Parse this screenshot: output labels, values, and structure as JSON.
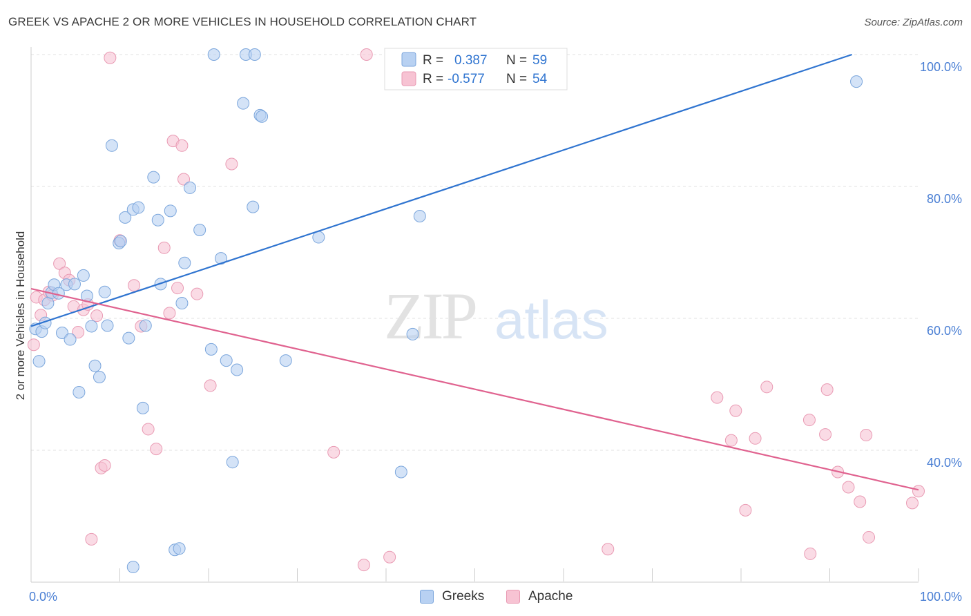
{
  "title": "GREEK VS APACHE 2 OR MORE VEHICLES IN HOUSEHOLD CORRELATION CHART",
  "source": "Source: ZipAtlas.com",
  "watermark": {
    "zip": "ZIP",
    "atlas": "atlas"
  },
  "colors": {
    "greek_fill": "#b8d1f2",
    "greek_stroke": "#7ba6dc",
    "greek_line": "#2f74d0",
    "apache_fill": "#f7c3d3",
    "apache_stroke": "#e99ab3",
    "apache_line": "#e0628f",
    "axis_text": "#4a7fd4",
    "grid": "#e2e2e2"
  },
  "stats": {
    "greek": {
      "r_label": "R =",
      "r_value": "0.387",
      "n_label": "N =",
      "n_value": "59"
    },
    "apache": {
      "r_label": "R =",
      "r_value": "-0.577",
      "n_label": "N =",
      "n_value": "54"
    }
  },
  "legend": {
    "greek": "Greeks",
    "apache": "Apache"
  },
  "chart_data": {
    "type": "scatter",
    "title": "GREEK VS APACHE 2 OR MORE VEHICLES IN HOUSEHOLD CORRELATION CHART",
    "xlabel": "",
    "ylabel": "2 or more Vehicles in Household",
    "xlim": [
      0,
      100
    ],
    "ylim": [
      20,
      100
    ],
    "x_tick_labels": [
      "0.0%",
      "100.0%"
    ],
    "y_ticks": [
      40,
      60,
      80,
      100
    ],
    "y_tick_labels": [
      "40.0%",
      "60.0%",
      "80.0%",
      "100.0%"
    ],
    "grid": true,
    "legend_position": "bottom-center",
    "series": [
      {
        "name": "Greeks",
        "points": [
          [
            0.5,
            58.4
          ],
          [
            0.9,
            53.5
          ],
          [
            1.2,
            58.0
          ],
          [
            1.6,
            59.3
          ],
          [
            1.9,
            62.3
          ],
          [
            2.3,
            63.9
          ],
          [
            2.6,
            65.1
          ],
          [
            3.1,
            63.8
          ],
          [
            3.5,
            57.8
          ],
          [
            4.0,
            65.1
          ],
          [
            4.4,
            56.8
          ],
          [
            4.9,
            65.2
          ],
          [
            5.4,
            48.8
          ],
          [
            5.9,
            66.5
          ],
          [
            6.3,
            63.4
          ],
          [
            6.8,
            58.8
          ],
          [
            7.2,
            52.8
          ],
          [
            7.7,
            51.1
          ],
          [
            8.3,
            64.0
          ],
          [
            8.6,
            58.9
          ],
          [
            9.1,
            86.2
          ],
          [
            9.9,
            71.4
          ],
          [
            10.1,
            71.7
          ],
          [
            10.6,
            75.3
          ],
          [
            11.0,
            57.0
          ],
          [
            11.5,
            76.5
          ],
          [
            12.1,
            76.8
          ],
          [
            12.9,
            58.9
          ],
          [
            12.6,
            46.4
          ],
          [
            13.8,
            81.4
          ],
          [
            14.3,
            74.9
          ],
          [
            14.6,
            65.2
          ],
          [
            15.7,
            76.3
          ],
          [
            16.2,
            24.9
          ],
          [
            17.0,
            62.3
          ],
          [
            17.3,
            68.4
          ],
          [
            17.9,
            79.8
          ],
          [
            19.0,
            73.4
          ],
          [
            20.3,
            55.3
          ],
          [
            20.6,
            100.0
          ],
          [
            21.4,
            69.1
          ],
          [
            22.0,
            53.6
          ],
          [
            22.7,
            38.2
          ],
          [
            23.2,
            52.2
          ],
          [
            23.9,
            92.6
          ],
          [
            24.2,
            100.0
          ],
          [
            25.0,
            76.9
          ],
          [
            25.2,
            100.0
          ],
          [
            25.8,
            90.8
          ],
          [
            26.0,
            90.6
          ],
          [
            28.7,
            53.6
          ],
          [
            32.4,
            72.3
          ],
          [
            41.7,
            36.7
          ],
          [
            43.0,
            57.6
          ],
          [
            43.8,
            75.5
          ],
          [
            56.6,
            100.0
          ],
          [
            93.0,
            95.9
          ],
          [
            11.5,
            22.3
          ],
          [
            16.7,
            25.1
          ]
        ]
      },
      {
        "name": "Apache",
        "points": [
          [
            0.3,
            56.0
          ],
          [
            0.6,
            63.2
          ],
          [
            1.1,
            60.5
          ],
          [
            1.5,
            62.8
          ],
          [
            2.0,
            64.0
          ],
          [
            2.4,
            63.5
          ],
          [
            3.2,
            68.3
          ],
          [
            3.8,
            66.9
          ],
          [
            4.3,
            65.8
          ],
          [
            4.8,
            61.8
          ],
          [
            5.3,
            57.9
          ],
          [
            5.9,
            61.3
          ],
          [
            6.4,
            62.1
          ],
          [
            6.8,
            26.5
          ],
          [
            7.4,
            60.4
          ],
          [
            7.9,
            37.3
          ],
          [
            8.3,
            37.7
          ],
          [
            8.9,
            99.5
          ],
          [
            10.0,
            71.8
          ],
          [
            11.6,
            65.0
          ],
          [
            12.4,
            58.8
          ],
          [
            13.2,
            43.2
          ],
          [
            14.1,
            40.2
          ],
          [
            15.0,
            70.7
          ],
          [
            15.6,
            60.8
          ],
          [
            16.0,
            86.9
          ],
          [
            16.5,
            64.6
          ],
          [
            17.0,
            86.2
          ],
          [
            17.2,
            81.1
          ],
          [
            18.7,
            63.7
          ],
          [
            20.2,
            49.8
          ],
          [
            22.6,
            83.4
          ],
          [
            34.1,
            39.7
          ],
          [
            37.5,
            22.6
          ],
          [
            37.8,
            100.0
          ],
          [
            40.4,
            23.8
          ],
          [
            65.0,
            25.0
          ],
          [
            77.3,
            48.0
          ],
          [
            78.9,
            41.5
          ],
          [
            79.4,
            46.0
          ],
          [
            80.5,
            30.9
          ],
          [
            81.6,
            41.8
          ],
          [
            82.9,
            49.6
          ],
          [
            87.7,
            44.6
          ],
          [
            87.8,
            24.3
          ],
          [
            89.5,
            42.4
          ],
          [
            89.7,
            49.2
          ],
          [
            90.9,
            36.7
          ],
          [
            92.1,
            34.4
          ],
          [
            93.4,
            32.2
          ],
          [
            94.1,
            42.3
          ],
          [
            94.4,
            26.8
          ],
          [
            99.3,
            32.0
          ],
          [
            100.0,
            33.8
          ]
        ]
      }
    ],
    "trend_lines": [
      {
        "name": "Greeks",
        "x": [
          0,
          92.5
        ],
        "y": [
          58.8,
          100.0
        ]
      },
      {
        "name": "Apache",
        "x": [
          0,
          100
        ],
        "y": [
          64.5,
          34.0
        ]
      }
    ]
  }
}
